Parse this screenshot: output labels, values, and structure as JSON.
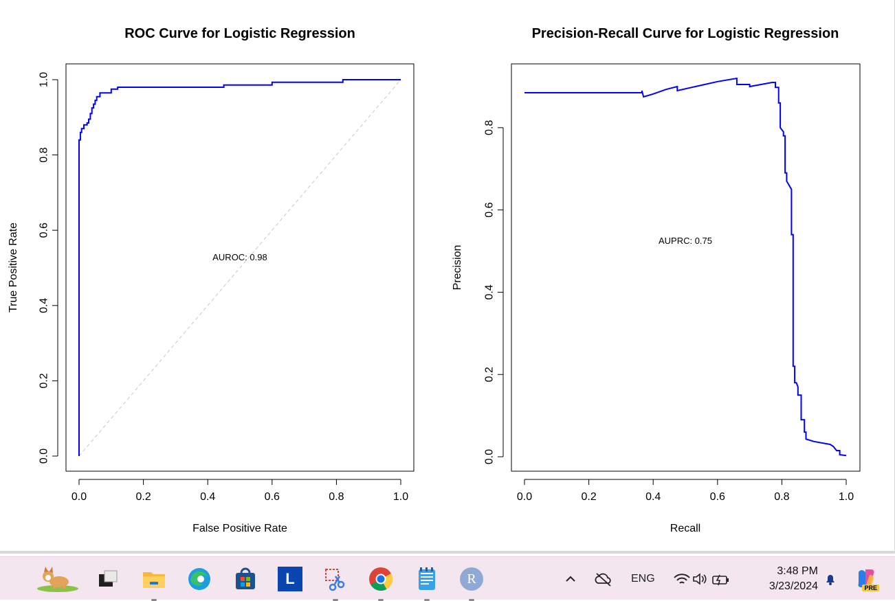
{
  "chart_data": [
    {
      "type": "line",
      "title": "ROC Curve for Logistic Regression",
      "xlabel": "False Positive Rate",
      "ylabel": "True Positive Rate",
      "xlim": [
        0,
        1
      ],
      "ylim": [
        0,
        1
      ],
      "xticks": [
        "0.0",
        "0.2",
        "0.4",
        "0.6",
        "0.8",
        "1.0"
      ],
      "yticks": [
        "0.0",
        "0.2",
        "0.4",
        "0.6",
        "0.8",
        "1.0"
      ],
      "annotation": "AUROC: 0.98",
      "reference_line": "diagonal dashed gray",
      "series_color": "#0000ff",
      "series": [
        {
          "points": [
            [
              0,
              0
            ],
            [
              0,
              0.84
            ],
            [
              0.004,
              0.84
            ],
            [
              0.004,
              0.86
            ],
            [
              0.008,
              0.86
            ],
            [
              0.008,
              0.87
            ],
            [
              0.015,
              0.87
            ],
            [
              0.015,
              0.88
            ],
            [
              0.025,
              0.88
            ],
            [
              0.025,
              0.885
            ],
            [
              0.03,
              0.885
            ],
            [
              0.03,
              0.895
            ],
            [
              0.035,
              0.895
            ],
            [
              0.035,
              0.91
            ],
            [
              0.04,
              0.91
            ],
            [
              0.04,
              0.925
            ],
            [
              0.045,
              0.925
            ],
            [
              0.045,
              0.935
            ],
            [
              0.05,
              0.935
            ],
            [
              0.05,
              0.945
            ],
            [
              0.055,
              0.945
            ],
            [
              0.055,
              0.955
            ],
            [
              0.065,
              0.955
            ],
            [
              0.065,
              0.965
            ],
            [
              0.1,
              0.965
            ],
            [
              0.1,
              0.975
            ],
            [
              0.12,
              0.975
            ],
            [
              0.12,
              0.98
            ],
            [
              0.45,
              0.98
            ],
            [
              0.45,
              0.986
            ],
            [
              0.6,
              0.986
            ],
            [
              0.6,
              0.993
            ],
            [
              0.82,
              0.993
            ],
            [
              0.82,
              1.0
            ],
            [
              1.0,
              1.0
            ]
          ]
        }
      ]
    },
    {
      "type": "line",
      "title": "Precision-Recall Curve for Logistic Regression",
      "xlabel": "Recall",
      "ylabel": "Precision",
      "xlim": [
        0,
        1
      ],
      "ylim": [
        0,
        0.92
      ],
      "xticks": [
        "0.0",
        "0.2",
        "0.4",
        "0.6",
        "0.8",
        "1.0"
      ],
      "yticks": [
        "0.0",
        "0.2",
        "0.4",
        "0.6",
        "0.8"
      ],
      "annotation": "AUPRC: 0.75",
      "series_color": "#0000ff",
      "series": [
        {
          "points": [
            [
              0,
              0.885
            ],
            [
              0.365,
              0.885
            ],
            [
              0.365,
              0.89
            ],
            [
              0.37,
              0.875
            ],
            [
              0.4,
              0.882
            ],
            [
              0.44,
              0.893
            ],
            [
              0.475,
              0.9
            ],
            [
              0.475,
              0.89
            ],
            [
              0.52,
              0.898
            ],
            [
              0.6,
              0.912
            ],
            [
              0.66,
              0.92
            ],
            [
              0.66,
              0.905
            ],
            [
              0.7,
              0.905
            ],
            [
              0.7,
              0.9
            ],
            [
              0.77,
              0.91
            ],
            [
              0.78,
              0.91
            ],
            [
              0.78,
              0.898
            ],
            [
              0.79,
              0.898
            ],
            [
              0.79,
              0.86
            ],
            [
              0.795,
              0.86
            ],
            [
              0.795,
              0.8
            ],
            [
              0.805,
              0.79
            ],
            [
              0.805,
              0.78
            ],
            [
              0.81,
              0.78
            ],
            [
              0.81,
              0.69
            ],
            [
              0.815,
              0.69
            ],
            [
              0.815,
              0.67
            ],
            [
              0.83,
              0.65
            ],
            [
              0.83,
              0.54
            ],
            [
              0.835,
              0.54
            ],
            [
              0.835,
              0.22
            ],
            [
              0.84,
              0.22
            ],
            [
              0.84,
              0.18
            ],
            [
              0.845,
              0.18
            ],
            [
              0.85,
              0.17
            ],
            [
              0.85,
              0.15
            ],
            [
              0.86,
              0.15
            ],
            [
              0.86,
              0.09
            ],
            [
              0.87,
              0.09
            ],
            [
              0.87,
              0.06
            ],
            [
              0.875,
              0.06
            ],
            [
              0.875,
              0.043
            ],
            [
              0.9,
              0.037
            ],
            [
              0.95,
              0.03
            ],
            [
              0.96,
              0.025
            ],
            [
              0.97,
              0.015
            ],
            [
              0.98,
              0.015
            ],
            [
              0.98,
              0.005
            ],
            [
              1.0,
              0.003
            ]
          ]
        }
      ]
    }
  ],
  "taskbar": {
    "apps": [
      {
        "name": "corgi-widgets-icon"
      },
      {
        "name": "task-view-icon"
      },
      {
        "name": "file-explorer-icon"
      },
      {
        "name": "edge-icon"
      },
      {
        "name": "store-icon"
      },
      {
        "name": "l-app-icon",
        "glyph": "L"
      },
      {
        "name": "snipping-tool-icon"
      },
      {
        "name": "chrome-icon"
      },
      {
        "name": "notepad-icon"
      },
      {
        "name": "r-app-icon",
        "glyph": "R"
      }
    ],
    "tray": {
      "language": "ENG",
      "time": "3:48 PM",
      "date": "3/23/2024",
      "copilot_badge": "PRE"
    }
  }
}
